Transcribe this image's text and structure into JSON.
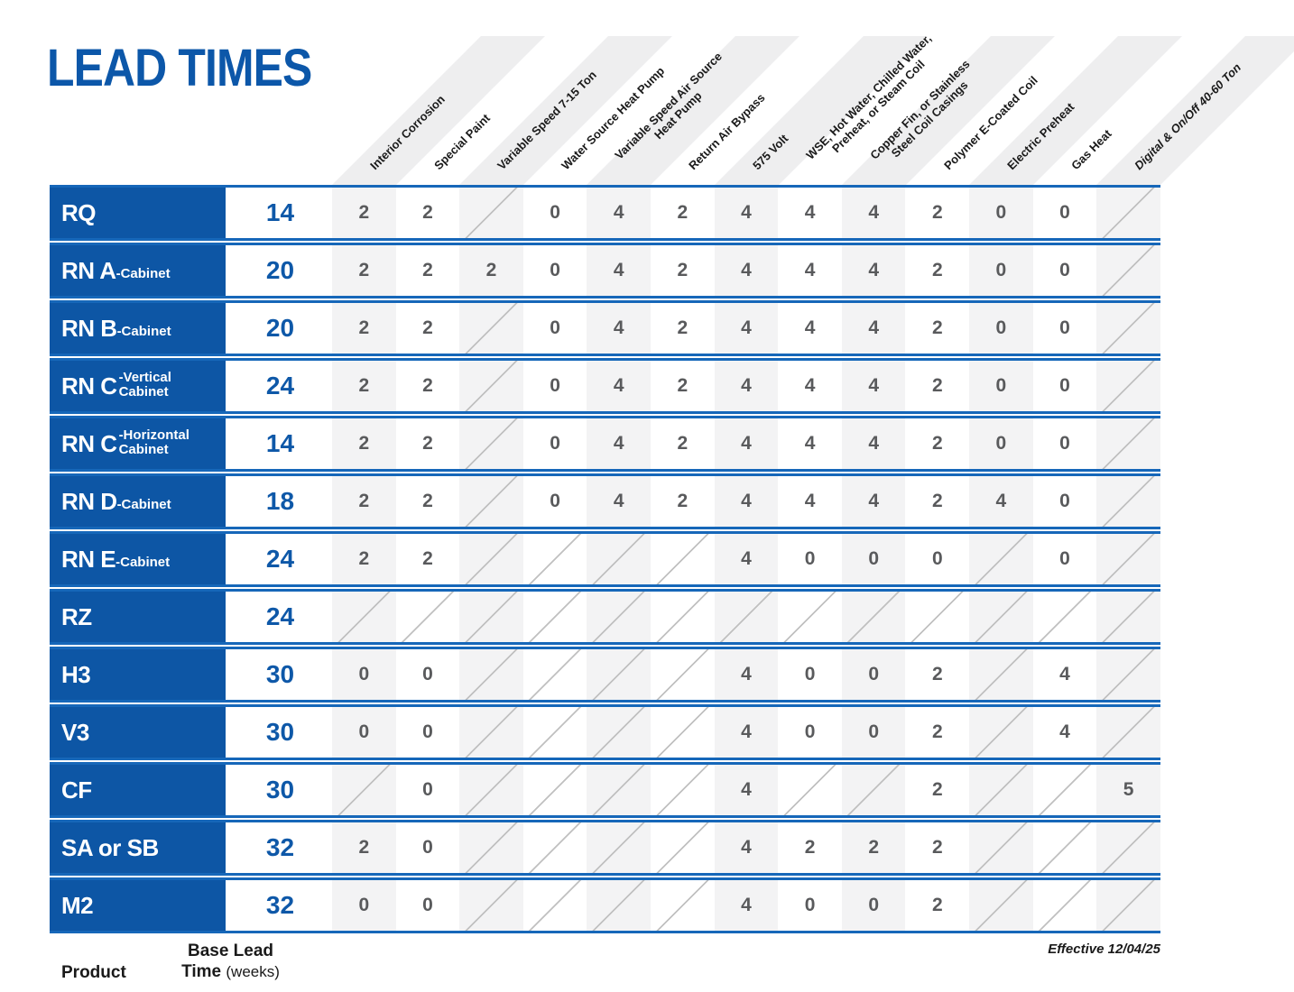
{
  "title": "LEAD TIMES",
  "footer": {
    "effective_note": "Effective 12/04/25"
  },
  "colors": {
    "primary_blue": "#0d56a5",
    "row_line_blue": "#1667b9",
    "lead_time_blue": "#0e58a8",
    "stripe_gray": "#f3f3f4",
    "header_band_gray": "#eeeeef",
    "value_gray": "#595a5c",
    "na_slash_gray": "#c0c0c0"
  },
  "table": {
    "product_header": "Product",
    "base_lead_line1": "Base Lead",
    "base_lead_line2_bold": "Time",
    "base_lead_line2_unit": "(weeks)",
    "option_columns": [
      {
        "label": "Interior Corrosion"
      },
      {
        "label": "Special Paint"
      },
      {
        "label": "Variable Speed 7-15 Ton"
      },
      {
        "label": "Water Source Heat Pump"
      },
      {
        "label": "Variable Speed Air Source\nHeat Pump"
      },
      {
        "label": "Return Air Bypass"
      },
      {
        "label": "575 Volt"
      },
      {
        "label": "WSE, Hot Water, Chilled Water,\nPreheat, or Steam Coil"
      },
      {
        "label": "Copper Fin, or Stainless\nSteel Coil Casings"
      },
      {
        "label": "Polymer E-Coated Coil"
      },
      {
        "label": "Electric Preheat"
      },
      {
        "label": "Gas Heat"
      },
      {
        "label": "Digital & On/Off 40-60 Ton",
        "italic": true
      }
    ],
    "rows": [
      {
        "product": "RQ",
        "base": "14",
        "values": [
          "2",
          "2",
          null,
          "0",
          "4",
          "2",
          "4",
          "4",
          "4",
          "2",
          "0",
          "0",
          null
        ]
      },
      {
        "product": "RN A",
        "suffix": "-Cabinet",
        "base": "20",
        "values": [
          "2",
          "2",
          "2",
          "0",
          "4",
          "2",
          "4",
          "4",
          "4",
          "2",
          "0",
          "0",
          null
        ]
      },
      {
        "product": "RN B",
        "suffix": "-Cabinet",
        "base": "20",
        "values": [
          "2",
          "2",
          null,
          "0",
          "4",
          "2",
          "4",
          "4",
          "4",
          "2",
          "0",
          "0",
          null
        ]
      },
      {
        "product": "RN C",
        "suffix_lines": [
          "-Vertical",
          "Cabinet"
        ],
        "base": "24",
        "values": [
          "2",
          "2",
          null,
          "0",
          "4",
          "2",
          "4",
          "4",
          "4",
          "2",
          "0",
          "0",
          null
        ]
      },
      {
        "product": "RN C",
        "suffix_lines": [
          "-Horizontal",
          "Cabinet"
        ],
        "base": "14",
        "values": [
          "2",
          "2",
          null,
          "0",
          "4",
          "2",
          "4",
          "4",
          "4",
          "2",
          "0",
          "0",
          null
        ]
      },
      {
        "product": "RN D",
        "suffix": "-Cabinet",
        "base": "18",
        "values": [
          "2",
          "2",
          null,
          "0",
          "4",
          "2",
          "4",
          "4",
          "4",
          "2",
          "4",
          "0",
          null
        ]
      },
      {
        "product": "RN E",
        "suffix": "-Cabinet",
        "base": "24",
        "values": [
          "2",
          "2",
          null,
          null,
          null,
          null,
          "4",
          "0",
          "0",
          "0",
          null,
          "0",
          null
        ]
      },
      {
        "product": "RZ",
        "base": "24",
        "values": [
          null,
          null,
          null,
          null,
          null,
          null,
          null,
          null,
          null,
          null,
          null,
          null,
          null
        ]
      },
      {
        "product": "H3",
        "base": "30",
        "values": [
          "0",
          "0",
          null,
          null,
          null,
          null,
          "4",
          "0",
          "0",
          "2",
          null,
          "4",
          null
        ]
      },
      {
        "product": "V3",
        "base": "30",
        "values": [
          "0",
          "0",
          null,
          null,
          null,
          null,
          "4",
          "0",
          "0",
          "2",
          null,
          "4",
          null
        ]
      },
      {
        "product": "CF",
        "base": "30",
        "values": [
          null,
          "0",
          null,
          null,
          null,
          null,
          "4",
          null,
          null,
          "2",
          null,
          null,
          "5"
        ]
      },
      {
        "product": "SA or SB",
        "base": "32",
        "values": [
          "2",
          "0",
          null,
          null,
          null,
          null,
          "4",
          "2",
          "2",
          "2",
          null,
          null,
          null
        ]
      },
      {
        "product": "M2",
        "base": "32",
        "values": [
          "0",
          "0",
          null,
          null,
          null,
          null,
          "4",
          "0",
          "0",
          "2",
          null,
          null,
          null
        ]
      }
    ]
  }
}
